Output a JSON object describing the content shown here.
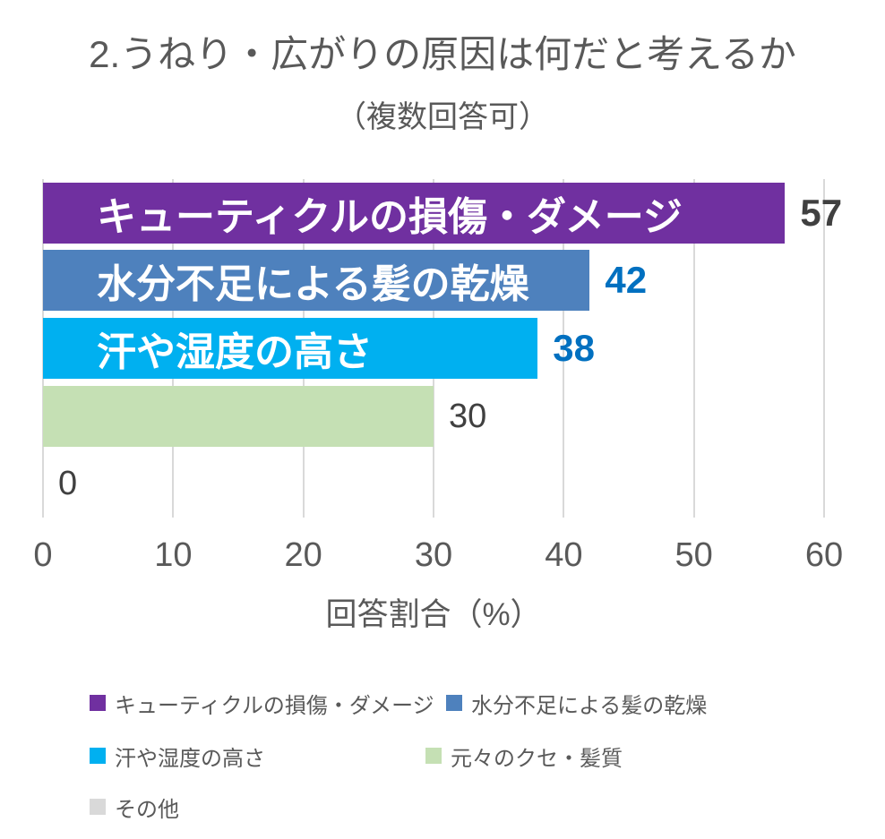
{
  "title": "2.うねり・広がりの原因は何だと考えるか",
  "subtitle": "（複数回答可）",
  "chart_data": {
    "type": "bar",
    "orientation": "horizontal",
    "title": "2.うねり・広がりの原因は何だと考えるか",
    "subtitle": "（複数回答可）",
    "categories": [
      "キューティクルの損傷・ダメージ",
      "水分不足による髪の乾燥",
      "汗や湿度の高さ",
      "元々のクセ・髪質",
      "その他"
    ],
    "values": [
      57,
      42,
      38,
      30,
      0
    ],
    "bar_colors": [
      "#7030A0",
      "#4E81BD",
      "#00B0F0",
      "#C5E0B4",
      "#D9D9D9"
    ],
    "inside_labels": [
      "キューティクルの損傷・ダメージ",
      "水分不足による髪の乾燥",
      "汗や湿度の高さ",
      "",
      ""
    ],
    "value_label_colors": [
      "#404040",
      "#0070C0",
      "#0070C0",
      "#404040",
      "#404040"
    ],
    "value_label_bold": [
      true,
      true,
      true,
      false,
      false
    ],
    "xlabel": "回答割合（%）",
    "x_ticks": [
      0,
      10,
      20,
      30,
      40,
      50,
      60
    ],
    "xlim": [
      0,
      60
    ],
    "grid": true,
    "legend_position": "bottom",
    "legend": [
      {
        "label": "キューティクルの損傷・ダメージ",
        "color": "#7030A0"
      },
      {
        "label": "水分不足による髪の乾燥",
        "color": "#4E81BD"
      },
      {
        "label": "汗や湿度の高さ",
        "color": "#00B0F0"
      },
      {
        "label": "元々のクセ・髪質",
        "color": "#C5E0B4"
      },
      {
        "label": "その他",
        "color": "#D9D9D9"
      }
    ]
  },
  "colors": {
    "title_text": "#595959",
    "axis_text": "#595959",
    "gridline": "#D9D9D9",
    "background": "#FFFFFF"
  }
}
